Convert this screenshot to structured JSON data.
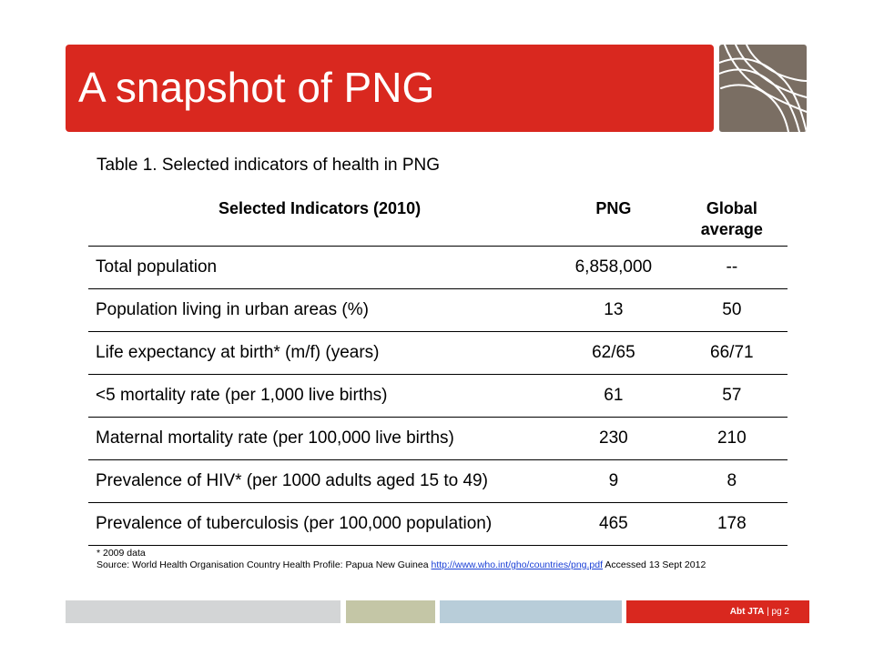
{
  "slide": {
    "title": "A snapshot of PNG",
    "caption": "Table 1. Selected indicators of health in PNG"
  },
  "table": {
    "headers": [
      "Selected Indicators (2010)",
      "PNG",
      "Global average"
    ],
    "rows": [
      [
        "Total population",
        "6,858,000",
        "--"
      ],
      [
        "Population living in urban areas (%)",
        "13",
        "50"
      ],
      [
        "Life expectancy at birth* (m/f) (years)",
        "62/65",
        "66/71"
      ],
      [
        "<5 mortality rate (per 1,000 live births)",
        "61",
        "57"
      ],
      [
        "Maternal mortality rate (per 100,000 live births)",
        "230",
        "210"
      ],
      [
        "Prevalence of HIV* (per 1000 adults aged 15 to 49)",
        "9",
        "8"
      ],
      [
        "Prevalence of tuberculosis (per 100,000 population)",
        "465",
        "178"
      ]
    ]
  },
  "notes": {
    "footnote": "* 2009 data",
    "source_prefix": "Source: World Health Organisation Country Health Profile: Papua New Guinea",
    "source_link": "http://www.who.int/gho/countries/png.pdf",
    "source_suffix": "Accessed 13 Sept 2012"
  },
  "footer": {
    "brand": "Abt JTA",
    "separator": "|",
    "page": "pg 2"
  },
  "colors": {
    "accent": "#d9281f",
    "logo_bg": "#7a6e63",
    "footer_gray": "#d3d5d6",
    "footer_olive": "#c4c6a6",
    "footer_blue": "#b8cdd9"
  }
}
